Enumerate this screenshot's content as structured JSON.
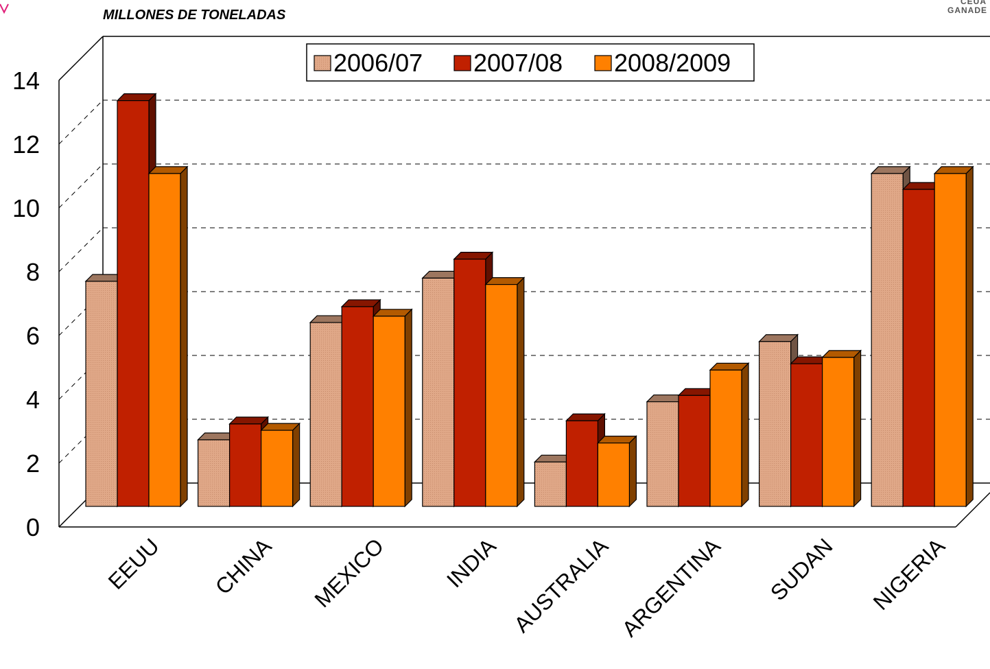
{
  "corner": {
    "logo_text": "GANADE",
    "logo_text_top": "CEUA"
  },
  "chart_data": {
    "type": "bar",
    "title": "MILLONES DE TONELADAS",
    "xlabel": "",
    "ylabel": "",
    "ylim": [
      0,
      14
    ],
    "yticks": [
      0,
      2,
      4,
      6,
      8,
      10,
      12,
      14
    ],
    "grid": true,
    "legend_position": "top-center",
    "categories": [
      "EEUU",
      "CHINA",
      "MEXICO",
      "INDIA",
      "AUSTRALIA",
      "ARGENTINA",
      "SUDAN",
      "NIGERIA"
    ],
    "series": [
      {
        "name": "2006/07",
        "color": "#E0A888",
        "values": [
          7.1,
          2.1,
          5.8,
          7.2,
          1.4,
          3.3,
          5.2,
          10.5
        ]
      },
      {
        "name": "2007/08",
        "color": "#C02000",
        "values": [
          12.8,
          2.6,
          6.3,
          7.8,
          2.7,
          3.5,
          4.5,
          10.0
        ]
      },
      {
        "name": "2008/2009",
        "color": "#FF8000",
        "values": [
          10.5,
          2.4,
          6.0,
          7.0,
          2.0,
          4.3,
          4.7,
          10.5
        ]
      }
    ]
  }
}
